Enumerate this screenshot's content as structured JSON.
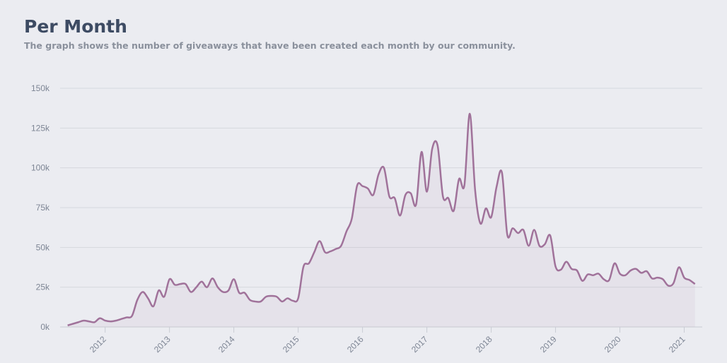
{
  "chart_data": {
    "type": "line",
    "title": "Per Month",
    "subtitle": "The graph shows the number of giveaways that have been created each month by our community.",
    "x": [
      2011.417,
      2011.5,
      2011.583,
      2011.667,
      2011.75,
      2011.833,
      2011.917,
      2012.0,
      2012.083,
      2012.167,
      2012.25,
      2012.333,
      2012.417,
      2012.5,
      2012.583,
      2012.667,
      2012.75,
      2012.833,
      2012.917,
      2013.0,
      2013.083,
      2013.167,
      2013.25,
      2013.333,
      2013.417,
      2013.5,
      2013.583,
      2013.667,
      2013.75,
      2013.833,
      2013.917,
      2014.0,
      2014.083,
      2014.167,
      2014.25,
      2014.333,
      2014.417,
      2014.5,
      2014.583,
      2014.667,
      2014.75,
      2014.833,
      2014.917,
      2015.0,
      2015.083,
      2015.167,
      2015.25,
      2015.333,
      2015.417,
      2015.5,
      2015.583,
      2015.667,
      2015.75,
      2015.833,
      2015.917,
      2016.0,
      2016.083,
      2016.167,
      2016.25,
      2016.333,
      2016.417,
      2016.5,
      2016.583,
      2016.667,
      2016.75,
      2016.833,
      2016.917,
      2017.0,
      2017.083,
      2017.167,
      2017.25,
      2017.333,
      2017.417,
      2017.5,
      2017.583,
      2017.667,
      2017.75,
      2017.833,
      2017.917,
      2018.0,
      2018.083,
      2018.167,
      2018.25,
      2018.333,
      2018.417,
      2018.5,
      2018.583,
      2018.667,
      2018.75,
      2018.833,
      2018.917,
      2019.0,
      2019.083,
      2019.167,
      2019.25,
      2019.333,
      2019.417,
      2019.5,
      2019.583,
      2019.667,
      2019.75,
      2019.833,
      2019.917,
      2020.0,
      2020.083,
      2020.167,
      2020.25,
      2020.333,
      2020.417,
      2020.5,
      2020.583,
      2020.667,
      2020.75,
      2020.833,
      2020.917,
      2021.0,
      2021.083,
      2021.167
    ],
    "series": [
      {
        "name": "Giveaways",
        "color": "#a0729a",
        "values": [
          1000,
          2000,
          3000,
          4000,
          3500,
          3000,
          5500,
          4000,
          3500,
          4000,
          5000,
          6000,
          7000,
          17000,
          22000,
          18000,
          13000,
          23000,
          19000,
          30000,
          26500,
          27000,
          27000,
          22000,
          25000,
          28500,
          25000,
          30500,
          25000,
          22000,
          23000,
          30000,
          21500,
          21500,
          17000,
          16000,
          16000,
          19000,
          19500,
          19000,
          16000,
          18000,
          16500,
          18000,
          38000,
          40000,
          47000,
          54000,
          47000,
          47500,
          49000,
          51000,
          60000,
          68000,
          89000,
          88500,
          87000,
          83000,
          96000,
          100000,
          82000,
          81000,
          70000,
          83000,
          84000,
          77000,
          110000,
          85000,
          112000,
          114000,
          82000,
          81000,
          73000,
          93000,
          89000,
          134000,
          86000,
          65000,
          74500,
          69000,
          88000,
          97000,
          58000,
          62000,
          59000,
          61000,
          51000,
          61000,
          51000,
          52000,
          57500,
          38000,
          36000,
          41000,
          36500,
          35500,
          29000,
          33000,
          32500,
          33500,
          30000,
          29500,
          40000,
          33500,
          32500,
          35500,
          36500,
          34000,
          35000,
          30500,
          31000,
          30000,
          26000,
          27500,
          37500,
          31000,
          29500,
          27000
        ]
      }
    ],
    "xlim": [
      2011.3,
      2021.28
    ],
    "xticks": [
      2012,
      2013,
      2014,
      2015,
      2016,
      2017,
      2018,
      2019,
      2020,
      2021
    ],
    "ylim": [
      0,
      150000
    ],
    "yticks": [
      {
        "value": 0,
        "label": "0k"
      },
      {
        "value": 25000,
        "label": "25k"
      },
      {
        "value": 50000,
        "label": "50k"
      },
      {
        "value": 75000,
        "label": "75k"
      },
      {
        "value": 100000,
        "label": "100k"
      },
      {
        "value": 125000,
        "label": "125k"
      },
      {
        "value": 150000,
        "label": "150k"
      }
    ],
    "grid": true
  }
}
